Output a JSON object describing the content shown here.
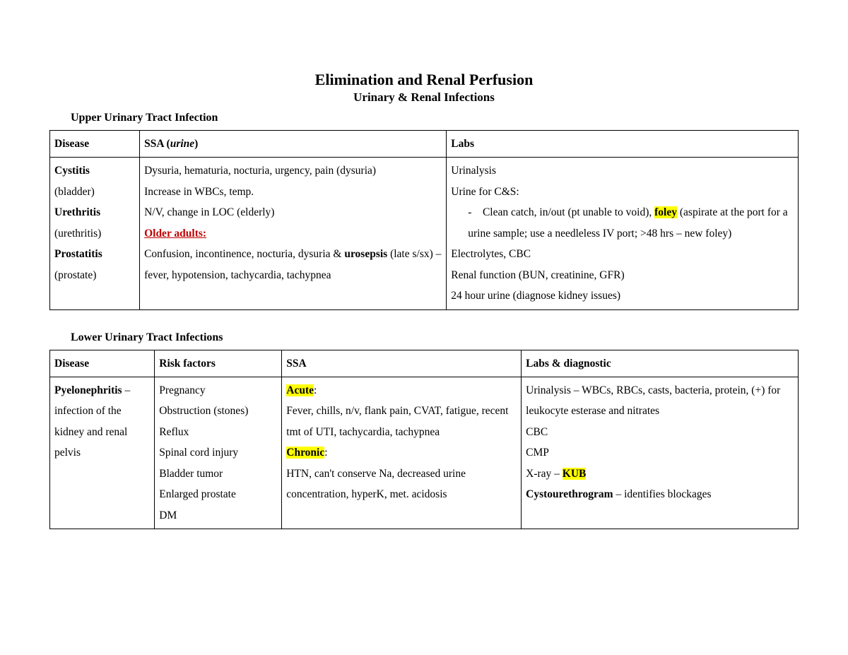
{
  "colors": {
    "background": "#ffffff",
    "text": "#000000",
    "highlight": "#ffff00",
    "red": "#c00000",
    "border": "#000000"
  },
  "typography": {
    "font_family": "Times New Roman",
    "title_fontsize": 22,
    "subtitle_fontsize": 17,
    "body_fontsize": 15.5,
    "line_height": 1.9
  },
  "header": {
    "title": "Elimination and Renal Perfusion",
    "subtitle": "Urinary & Renal Infections"
  },
  "section1": {
    "label": "Upper Urinary Tract Infection",
    "columns": [
      "Disease",
      "SSA (urine)",
      "Labs"
    ],
    "col_widths": [
      "12%",
      "41%",
      "47%"
    ],
    "disease": {
      "d1": "Cystitis",
      "d1_sub": "(bladder)",
      "d2": "Urethritis",
      "d2_sub": "(urethritis)",
      "d3": "Prostatitis",
      "d3_sub": "(prostate)"
    },
    "ssa": {
      "l1": "Dysuria, hematuria, nocturia, urgency, pain (dysuria)",
      "l2": "Increase in WBCs, temp.",
      "l3": "N/V, change in LOC (elderly)",
      "l4": "Older adults: ",
      "l5a": "Confusion, incontinence, nocturia, dysuria & ",
      "l5b": "urosepsis",
      "l5c": " (late s/sx) – fever, hypotension, tachycardia, tachypnea"
    },
    "labs": {
      "l1": "Urinalysis",
      "l2": "Urine for C&S:",
      "l3_dash": "-",
      "l3a": "Clean catch, in/out (pt unable to void), ",
      "l3b": "foley",
      "l3c": " (aspirate at the port for a urine sample; use a needleless IV port; >48 hrs – new foley)",
      "l4": "Electrolytes, CBC",
      "l5": "Renal function (BUN, creatinine, GFR)",
      "l6": "24 hour urine (diagnose kidney issues)"
    }
  },
  "section2": {
    "label": "Lower Urinary Tract Infections",
    "columns": [
      "Disease",
      "Risk factors",
      "SSA",
      "Labs & diagnostic"
    ],
    "col_widths": [
      "14%",
      "17%",
      "32%",
      "37%"
    ],
    "disease": {
      "d1": "Pyelonephritis",
      "d1_sub": " – infection of the kidney and renal pelvis"
    },
    "risk": {
      "l1": "Pregnancy",
      "l2": "Obstruction (stones)",
      "l3": "Reflux",
      "l4": "Spinal cord injury",
      "l5": "Bladder tumor",
      "l6": "Enlarged prostate",
      "l7": "DM"
    },
    "ssa": {
      "acute_lbl": "Acute",
      "acute_colon": ":",
      "acute_txt": "Fever, chills, n/v, flank pain, CVAT, fatigue, recent tmt of UTI, tachycardia, tachypnea",
      "chronic_lbl": "Chronic",
      "chronic_colon": ":",
      "chronic_txt": "HTN, can't conserve Na, decreased urine concentration, hyperK, met. acidosis"
    },
    "labs": {
      "l1": "Urinalysis – WBCs, RBCs, casts, bacteria, protein, (+) for leukocyte esterase and nitrates",
      "l2": "CBC",
      "l3": "CMP",
      "l4a": "X-ray – ",
      "l4b": "KUB",
      "l5a": "Cystourethrogram",
      "l5b": " – identifies blockages"
    }
  }
}
